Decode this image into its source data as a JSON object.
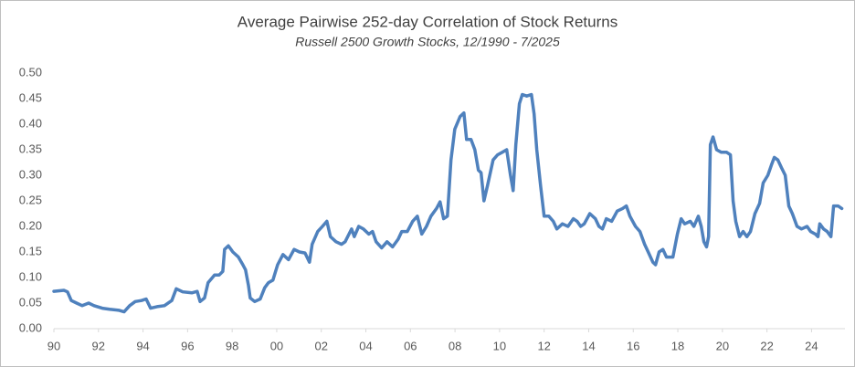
{
  "chart_data": {
    "type": "line",
    "title": "Average Pairwise 252-day Correlation of Stock Returns",
    "subtitle": "Russell 2500 Growth Stocks, 12/1990 - 7/2025",
    "x": [
      1990.0,
      1990.45,
      1990.61,
      1990.78,
      1991.02,
      1991.27,
      1991.56,
      1991.8,
      1992.17,
      1992.5,
      1992.91,
      1993.15,
      1993.4,
      1993.65,
      1993.93,
      1994.14,
      1994.34,
      1994.63,
      1994.96,
      1995.29,
      1995.49,
      1995.78,
      1996.19,
      1996.43,
      1996.56,
      1996.76,
      1996.92,
      1997.21,
      1997.42,
      1997.58,
      1997.66,
      1997.83,
      1998.03,
      1998.28,
      1998.48,
      1998.6,
      1998.73,
      1998.81,
      1999.01,
      1999.26,
      1999.46,
      1999.63,
      1999.83,
      2000.04,
      2000.28,
      2000.53,
      2000.78,
      2001.02,
      2001.27,
      2001.47,
      2001.59,
      2001.84,
      2002.05,
      2002.25,
      2002.41,
      2002.66,
      2002.91,
      2003.07,
      2003.36,
      2003.48,
      2003.68,
      2003.89,
      2004.13,
      2004.3,
      2004.46,
      2004.71,
      2004.95,
      2005.2,
      2005.45,
      2005.61,
      2005.86,
      2006.1,
      2006.31,
      2006.51,
      2006.72,
      2006.92,
      2007.17,
      2007.33,
      2007.49,
      2007.66,
      2007.82,
      2007.99,
      2008.23,
      2008.4,
      2008.52,
      2008.72,
      2008.89,
      2009.05,
      2009.17,
      2009.3,
      2009.46,
      2009.71,
      2009.91,
      2010.12,
      2010.32,
      2010.49,
      2010.61,
      2010.73,
      2010.89,
      2011.02,
      2011.22,
      2011.43,
      2011.55,
      2011.67,
      2011.84,
      2012.0,
      2012.21,
      2012.41,
      2012.57,
      2012.82,
      2013.07,
      2013.31,
      2013.48,
      2013.64,
      2013.8,
      2014.05,
      2014.3,
      2014.46,
      2014.62,
      2014.79,
      2015.03,
      2015.28,
      2015.52,
      2015.69,
      2015.85,
      2016.1,
      2016.3,
      2016.51,
      2016.67,
      2016.88,
      2017.0,
      2017.16,
      2017.33,
      2017.49,
      2017.78,
      2017.98,
      2018.15,
      2018.31,
      2018.56,
      2018.72,
      2018.92,
      2019.05,
      2019.17,
      2019.29,
      2019.38,
      2019.46,
      2019.58,
      2019.74,
      2019.95,
      2020.19,
      2020.36,
      2020.48,
      2020.6,
      2020.77,
      2020.93,
      2021.1,
      2021.26,
      2021.46,
      2021.67,
      2021.83,
      2022.04,
      2022.2,
      2022.33,
      2022.49,
      2022.65,
      2022.82,
      2022.98,
      2023.14,
      2023.35,
      2023.55,
      2023.8,
      2023.96,
      2024.17,
      2024.29,
      2024.37,
      2024.54,
      2024.7,
      2024.87,
      2024.99,
      2025.19,
      2025.36
    ],
    "series": [
      {
        "color": "#4f81bd",
        "values": [
          0.073,
          0.075,
          0.072,
          0.055,
          0.05,
          0.045,
          0.05,
          0.045,
          0.04,
          0.038,
          0.036,
          0.033,
          0.045,
          0.053,
          0.055,
          0.058,
          0.04,
          0.043,
          0.045,
          0.055,
          0.078,
          0.072,
          0.07,
          0.073,
          0.053,
          0.06,
          0.09,
          0.105,
          0.105,
          0.112,
          0.155,
          0.162,
          0.15,
          0.14,
          0.125,
          0.115,
          0.085,
          0.06,
          0.053,
          0.058,
          0.08,
          0.09,
          0.095,
          0.125,
          0.145,
          0.135,
          0.155,
          0.15,
          0.148,
          0.13,
          0.165,
          0.19,
          0.2,
          0.21,
          0.18,
          0.17,
          0.165,
          0.17,
          0.195,
          0.18,
          0.2,
          0.195,
          0.185,
          0.19,
          0.17,
          0.158,
          0.17,
          0.16,
          0.175,
          0.19,
          0.19,
          0.21,
          0.22,
          0.185,
          0.2,
          0.22,
          0.235,
          0.248,
          0.215,
          0.22,
          0.33,
          0.39,
          0.415,
          0.422,
          0.37,
          0.37,
          0.35,
          0.31,
          0.305,
          0.25,
          0.28,
          0.33,
          0.34,
          0.345,
          0.35,
          0.3,
          0.27,
          0.36,
          0.44,
          0.458,
          0.455,
          0.458,
          0.42,
          0.35,
          0.28,
          0.22,
          0.22,
          0.21,
          0.195,
          0.205,
          0.2,
          0.215,
          0.21,
          0.2,
          0.205,
          0.225,
          0.215,
          0.2,
          0.195,
          0.215,
          0.21,
          0.23,
          0.235,
          0.24,
          0.22,
          0.2,
          0.19,
          0.165,
          0.15,
          0.13,
          0.125,
          0.15,
          0.155,
          0.14,
          0.14,
          0.185,
          0.215,
          0.205,
          0.21,
          0.2,
          0.22,
          0.2,
          0.17,
          0.16,
          0.18,
          0.36,
          0.375,
          0.35,
          0.345,
          0.345,
          0.34,
          0.25,
          0.21,
          0.18,
          0.19,
          0.18,
          0.19,
          0.225,
          0.245,
          0.285,
          0.3,
          0.32,
          0.335,
          0.33,
          0.315,
          0.3,
          0.24,
          0.225,
          0.2,
          0.195,
          0.2,
          0.19,
          0.185,
          0.18,
          0.205,
          0.195,
          0.19,
          0.18,
          0.24,
          0.24,
          0.235
        ]
      }
    ],
    "xlim": [
      1990,
      2025.5
    ],
    "xticks": [
      {
        "value": 1990,
        "label": "90"
      },
      {
        "value": 1992,
        "label": "92"
      },
      {
        "value": 1994,
        "label": "94"
      },
      {
        "value": 1996,
        "label": "96"
      },
      {
        "value": 1998,
        "label": "98"
      },
      {
        "value": 2000,
        "label": "00"
      },
      {
        "value": 2002,
        "label": "02"
      },
      {
        "value": 2004,
        "label": "04"
      },
      {
        "value": 2006,
        "label": "06"
      },
      {
        "value": 2008,
        "label": "08"
      },
      {
        "value": 2010,
        "label": "10"
      },
      {
        "value": 2012,
        "label": "12"
      },
      {
        "value": 2014,
        "label": "14"
      },
      {
        "value": 2016,
        "label": "16"
      },
      {
        "value": 2018,
        "label": "18"
      },
      {
        "value": 2020,
        "label": "20"
      },
      {
        "value": 2022,
        "label": "22"
      },
      {
        "value": 2024,
        "label": "24"
      }
    ],
    "ylim": [
      0,
      0.5
    ],
    "yticks": [
      {
        "value": 0,
        "label": "0.00"
      },
      {
        "value": 0.05,
        "label": "0.05"
      },
      {
        "value": 0.1,
        "label": "0.10"
      },
      {
        "value": 0.15,
        "label": "0.15"
      },
      {
        "value": 0.2,
        "label": "0.20"
      },
      {
        "value": 0.25,
        "label": "0.25"
      },
      {
        "value": 0.3,
        "label": "0.30"
      },
      {
        "value": 0.35,
        "label": "0.35"
      },
      {
        "value": 0.4,
        "label": "0.40"
      },
      {
        "value": 0.45,
        "label": "0.45"
      },
      {
        "value": 0.5,
        "label": "0.50"
      }
    ],
    "grid": false
  }
}
